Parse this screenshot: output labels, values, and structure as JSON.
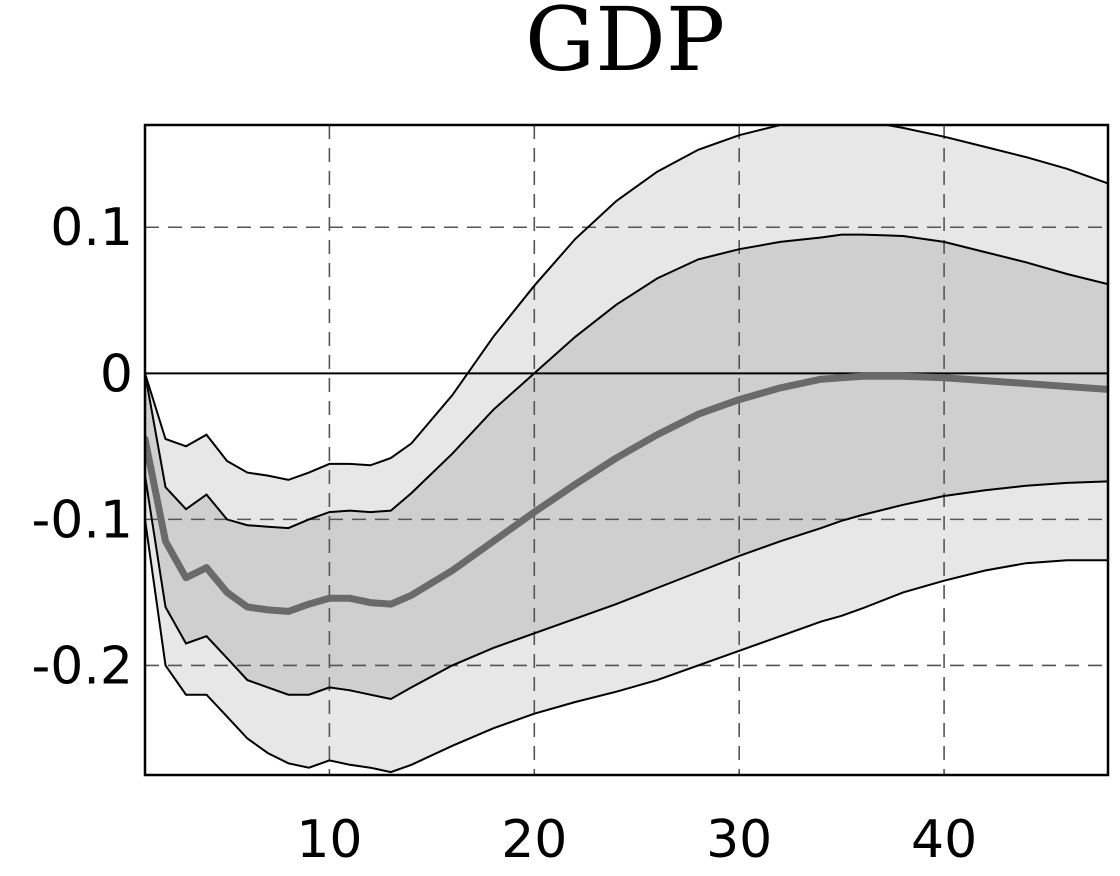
{
  "chart_data": {
    "type": "area",
    "title": "GDP",
    "xlabel": "",
    "ylabel": "",
    "xlim": [
      1,
      48
    ],
    "ylim": [
      -0.275,
      0.17
    ],
    "xticks": [
      10,
      20,
      30,
      40
    ],
    "xtick_labels": [
      "10",
      "20",
      "30",
      "40"
    ],
    "yticks": [
      0.1,
      0,
      -0.1,
      -0.2
    ],
    "ytick_labels": [
      "0.1",
      "0",
      "-0.1",
      "-0.2"
    ],
    "grid": true,
    "zero_line": true,
    "x": [
      1,
      2,
      3,
      4,
      5,
      6,
      7,
      8,
      9,
      10,
      11,
      12,
      13,
      14,
      16,
      18,
      20,
      22,
      24,
      26,
      28,
      30,
      32,
      34,
      35,
      36,
      38,
      40,
      42,
      44,
      46,
      48
    ],
    "median": [
      -0.045,
      -0.115,
      -0.14,
      -0.133,
      -0.15,
      -0.16,
      -0.162,
      -0.163,
      -0.158,
      -0.154,
      -0.154,
      -0.157,
      -0.158,
      -0.152,
      -0.135,
      -0.115,
      -0.095,
      -0.076,
      -0.058,
      -0.042,
      -0.028,
      -0.018,
      -0.01,
      -0.004,
      -0.003,
      -0.002,
      -0.002,
      -0.003,
      -0.005,
      -0.007,
      -0.009,
      -0.011
    ],
    "bands": [
      {
        "level": "outer",
        "color": "#e7e7e7",
        "upper": [
          0.0,
          -0.045,
          -0.05,
          -0.042,
          -0.06,
          -0.068,
          -0.07,
          -0.073,
          -0.068,
          -0.062,
          -0.062,
          -0.063,
          -0.058,
          -0.048,
          -0.015,
          0.025,
          0.06,
          0.092,
          0.118,
          0.138,
          0.153,
          0.163,
          0.17,
          0.174,
          0.174,
          0.173,
          0.168,
          0.162,
          0.155,
          0.148,
          0.14,
          0.13
        ],
        "lower": [
          -0.1,
          -0.2,
          -0.22,
          -0.22,
          -0.235,
          -0.25,
          -0.26,
          -0.267,
          -0.27,
          -0.265,
          -0.268,
          -0.27,
          -0.273,
          -0.268,
          -0.255,
          -0.243,
          -0.233,
          -0.225,
          -0.218,
          -0.21,
          -0.2,
          -0.19,
          -0.18,
          -0.17,
          -0.166,
          -0.161,
          -0.15,
          -0.142,
          -0.135,
          -0.13,
          -0.128,
          -0.128
        ]
      },
      {
        "level": "inner",
        "color": "#cfcfcf",
        "upper": [
          0.0,
          -0.078,
          -0.093,
          -0.083,
          -0.1,
          -0.104,
          -0.105,
          -0.106,
          -0.1,
          -0.095,
          -0.094,
          -0.095,
          -0.094,
          -0.082,
          -0.055,
          -0.025,
          0.0,
          0.025,
          0.047,
          0.065,
          0.078,
          0.085,
          0.09,
          0.093,
          0.095,
          0.095,
          0.094,
          0.09,
          0.083,
          0.076,
          0.068,
          0.061
        ],
        "lower": [
          -0.07,
          -0.16,
          -0.185,
          -0.18,
          -0.195,
          -0.21,
          -0.215,
          -0.22,
          -0.22,
          -0.215,
          -0.217,
          -0.22,
          -0.223,
          -0.215,
          -0.2,
          -0.188,
          -0.178,
          -0.168,
          -0.158,
          -0.147,
          -0.136,
          -0.125,
          -0.115,
          -0.106,
          -0.101,
          -0.097,
          -0.09,
          -0.084,
          -0.08,
          -0.077,
          -0.075,
          -0.074
        ]
      }
    ],
    "colors": {
      "median": "#6a6a6a",
      "outer_band": "#e7e7e7",
      "inner_band": "#cfcfcf",
      "edge": "#000000"
    }
  }
}
